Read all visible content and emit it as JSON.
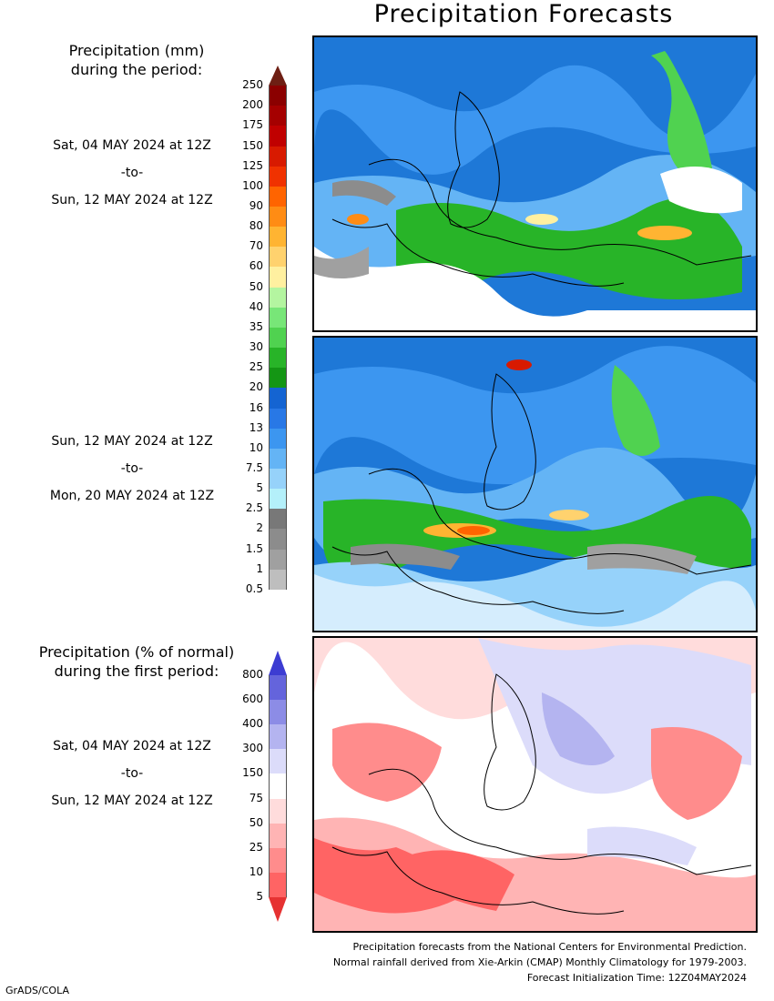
{
  "title": "Precipitation Forecasts",
  "precip_legend": {
    "heading_line1": "Precipitation (mm)",
    "heading_line2": "during the period:",
    "ticks": [
      "250",
      "200",
      "175",
      "150",
      "125",
      "100",
      "90",
      "80",
      "70",
      "60",
      "50",
      "40",
      "35",
      "30",
      "25",
      "20",
      "16",
      "13",
      "10",
      "7.5",
      "5",
      "2.5",
      "2",
      "1.5",
      "1",
      "0.5"
    ],
    "colors": [
      "#6e1f14",
      "#8b0000",
      "#a50000",
      "#c00000",
      "#d81a00",
      "#f03200",
      "#ff6400",
      "#ff8c14",
      "#ffb432",
      "#ffd26e",
      "#fff0a0",
      "#b4f5a0",
      "#78e678",
      "#50d250",
      "#28b428",
      "#149614",
      "#1464d2",
      "#2878e6",
      "#3c96f0",
      "#64b4f5",
      "#96d2fa",
      "#b4f0fa",
      "#787878",
      "#8c8c8c",
      "#a0a0a0",
      "#bebebe",
      "#ffffff"
    ]
  },
  "period1": {
    "start": "Sat, 04 MAY 2024 at 12Z",
    "to": "-to-",
    "end": "Sun, 12 MAY 2024 at 12Z"
  },
  "period2": {
    "start": "Sun, 12 MAY 2024 at 12Z",
    "to": "-to-",
    "end": "Mon, 20 MAY 2024 at 12Z"
  },
  "anomaly_legend": {
    "heading_line1": "Precipitation (% of normal)",
    "heading_line2": "during the first period:",
    "ticks": [
      "800",
      "600",
      "400",
      "300",
      "150",
      "75",
      "50",
      "25",
      "10",
      "5"
    ],
    "colors": [
      "#3c3cd2",
      "#6464dc",
      "#8c8ce6",
      "#b4b4f0",
      "#dcdcfa",
      "#ffffff",
      "#ffdcdc",
      "#ffb4b4",
      "#ff8c8c",
      "#ff6464",
      "#e63232"
    ]
  },
  "period3": {
    "start": "Sat, 04 MAY 2024 at 12Z",
    "to": "-to-",
    "end": "Sun, 12 MAY 2024 at 12Z"
  },
  "credits": {
    "line1": "Precipitation forecasts from the National Centers for Environmental Prediction.",
    "line2": "Normal rainfall derived from Xie-Arkin (CMAP) Monthly Climatology for 1979-2003.",
    "line3": "Forecast Initialization Time: 12Z04MAY2024"
  },
  "footer": "GrADS/COLA"
}
